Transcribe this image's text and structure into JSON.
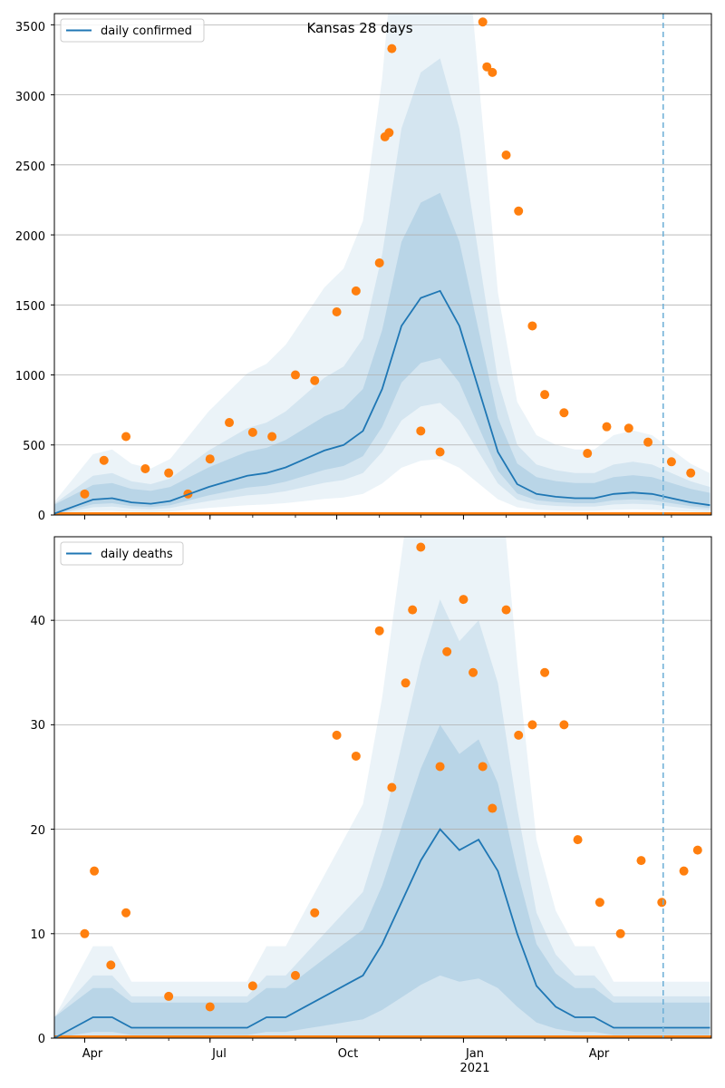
{
  "figure": {
    "title": "Kansas 28 days"
  },
  "colors": {
    "line": "#1f77b4",
    "points": "#ff7f0e",
    "band": "#1f77b4",
    "grid": "#b0b0b0",
    "vline": "#6baed6"
  },
  "chart_data": [
    {
      "type": "line",
      "title": "Kansas 28 days",
      "xlabel": "",
      "ylabel": "",
      "ylim": [
        0,
        3580
      ],
      "yticks": [
        0,
        500,
        1000,
        1500,
        2000,
        2500,
        3000,
        3500
      ],
      "grid": "horizontal",
      "legend_placement": "upper-left",
      "series": [
        {
          "name": "daily confirmed",
          "kind": "line",
          "x": [
            "2020-03-10",
            "2020-03-24",
            "2020-04-07",
            "2020-04-21",
            "2020-05-05",
            "2020-05-19",
            "2020-06-02",
            "2020-06-16",
            "2020-06-30",
            "2020-07-14",
            "2020-07-28",
            "2020-08-11",
            "2020-08-25",
            "2020-09-08",
            "2020-09-22",
            "2020-10-06",
            "2020-10-20",
            "2020-11-03",
            "2020-11-17",
            "2020-12-01",
            "2020-12-15",
            "2020-12-29",
            "2021-01-12",
            "2021-01-26",
            "2021-02-09",
            "2021-02-23",
            "2021-03-09",
            "2021-03-23",
            "2021-04-06",
            "2021-04-20",
            "2021-05-04",
            "2021-05-18",
            "2021-06-01",
            "2021-06-15",
            "2021-06-29"
          ],
          "y": [
            10,
            60,
            110,
            120,
            90,
            80,
            100,
            150,
            200,
            240,
            280,
            300,
            340,
            400,
            460,
            500,
            600,
            900,
            1350,
            1550,
            1600,
            1350,
            900,
            450,
            220,
            150,
            130,
            120,
            120,
            150,
            160,
            150,
            120,
            90,
            70
          ]
        },
        {
          "name": "",
          "kind": "scatter",
          "x": [
            "2020-04-01",
            "2020-04-15",
            "2020-05-01",
            "2020-05-15",
            "2020-06-01",
            "2020-06-15",
            "2020-07-01",
            "2020-07-15",
            "2020-08-01",
            "2020-08-15",
            "2020-09-01",
            "2020-09-15",
            "2020-10-01",
            "2020-10-15",
            "2020-11-01",
            "2020-11-05",
            "2020-11-08",
            "2020-11-10",
            "2020-12-01",
            "2020-12-15",
            "2021-01-15",
            "2021-01-18",
            "2021-01-22",
            "2021-02-01",
            "2021-02-10",
            "2021-02-20",
            "2021-03-01",
            "2021-03-15",
            "2021-04-01",
            "2021-04-15",
            "2021-05-01",
            "2021-05-15",
            "2021-06-01",
            "2021-06-15"
          ],
          "y": [
            150,
            390,
            560,
            330,
            300,
            150,
            400,
            660,
            590,
            560,
            1000,
            960,
            1450,
            1600,
            1800,
            2700,
            2730,
            3330,
            600,
            450,
            3520,
            3200,
            3160,
            2570,
            2170,
            1350,
            860,
            730,
            440,
            630,
            620,
            520,
            380,
            300
          ]
        }
      ],
      "vline_x": "2021-05-26"
    },
    {
      "type": "line",
      "title": "",
      "xlabel": "",
      "ylabel": "",
      "ylim": [
        0,
        48
      ],
      "yticks": [
        0,
        10,
        20,
        30,
        40
      ],
      "xticks": [
        "Apr",
        "Jul",
        "Oct",
        "Jan",
        "Apr"
      ],
      "xtick_sublabel": "2021",
      "grid": "horizontal",
      "legend_placement": "upper-left",
      "series": [
        {
          "name": "daily deaths",
          "kind": "line",
          "x": [
            "2020-03-10",
            "2020-03-24",
            "2020-04-07",
            "2020-04-21",
            "2020-05-05",
            "2020-05-19",
            "2020-06-02",
            "2020-06-16",
            "2020-06-30",
            "2020-07-14",
            "2020-07-28",
            "2020-08-11",
            "2020-08-25",
            "2020-09-08",
            "2020-09-22",
            "2020-10-06",
            "2020-10-20",
            "2020-11-03",
            "2020-11-17",
            "2020-12-01",
            "2020-12-15",
            "2020-12-29",
            "2021-01-12",
            "2021-01-26",
            "2021-02-09",
            "2021-02-23",
            "2021-03-09",
            "2021-03-23",
            "2021-04-06",
            "2021-04-20",
            "2021-05-04",
            "2021-05-18",
            "2021-06-01",
            "2021-06-15",
            "2021-06-29"
          ],
          "y": [
            0,
            1,
            2,
            2,
            1,
            1,
            1,
            1,
            1,
            1,
            1,
            2,
            2,
            3,
            4,
            5,
            6,
            9,
            13,
            17,
            20,
            18,
            19,
            16,
            10,
            5,
            3,
            2,
            2,
            1,
            1,
            1,
            1,
            1,
            1
          ]
        },
        {
          "name": "",
          "kind": "scatter",
          "x": [
            "2020-04-01",
            "2020-04-08",
            "2020-04-20",
            "2020-05-01",
            "2020-06-01",
            "2020-07-01",
            "2020-08-01",
            "2020-09-01",
            "2020-09-15",
            "2020-10-01",
            "2020-10-15",
            "2020-11-01",
            "2020-11-10",
            "2020-11-20",
            "2020-11-25",
            "2020-12-01",
            "2020-12-15",
            "2020-12-20",
            "2021-01-01",
            "2021-01-08",
            "2021-01-15",
            "2021-01-22",
            "2021-02-01",
            "2021-02-10",
            "2021-02-20",
            "2021-03-01",
            "2021-03-15",
            "2021-03-25",
            "2021-04-10",
            "2021-04-25",
            "2021-05-10",
            "2021-05-25",
            "2021-06-10",
            "2021-06-20"
          ],
          "y": [
            10,
            16,
            7,
            12,
            4,
            3,
            5,
            6,
            12,
            29,
            27,
            39,
            24,
            34,
            41,
            47,
            26,
            37,
            42,
            35,
            26,
            22,
            41,
            29,
            30,
            35,
            30,
            19,
            13,
            10,
            17,
            13,
            16,
            18
          ]
        }
      ],
      "vline_x": "2021-05-26"
    }
  ],
  "axes": [
    {
      "legend_label": "daily confirmed",
      "ytick_labels": [
        "0",
        "500",
        "1000",
        "1500",
        "2000",
        "2500",
        "3000",
        "3500"
      ]
    },
    {
      "legend_label": "daily deaths",
      "ytick_labels": [
        "0",
        "10",
        "20",
        "30",
        "40"
      ],
      "xtick_labels": [
        "Apr",
        "Jul",
        "Oct",
        "Jan",
        "Apr"
      ],
      "xtick_year_label": "2021"
    }
  ]
}
